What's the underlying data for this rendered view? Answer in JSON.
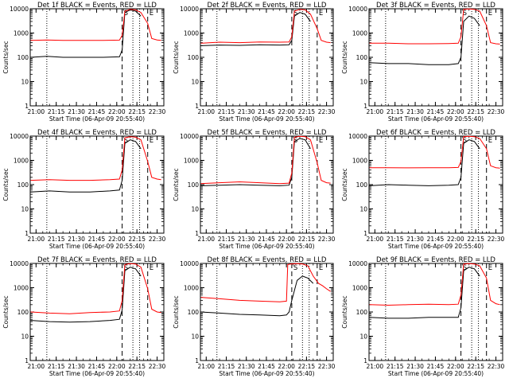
{
  "colors": {
    "background": "#ffffff",
    "axes": "#000000",
    "events": "#000000",
    "lld": "#ff0000"
  },
  "shared": {
    "xlabel": "Start Time (06-Apr-09 20:55:40)",
    "ylabel": "Counts/sec",
    "x_ticks": [
      "21:00",
      "21:15",
      "21:30",
      "21:45",
      "22:00",
      "22:15",
      "22:30"
    ],
    "y_ticks": [
      "1",
      "10",
      "100",
      "1000",
      "10000"
    ]
  },
  "chart_data": [
    {
      "type": "line",
      "title": "Det 1f BLACK = Events, RED = LLD",
      "xlim": [
        "20:55:40",
        "22:35"
      ],
      "ylim": [
        1,
        10000
      ],
      "yscale": "log",
      "markers": [
        {
          "time": "21:08",
          "style": "dotted",
          "label": ""
        },
        {
          "time": "22:04",
          "style": "dashed",
          "label": "S"
        },
        {
          "time": "22:12",
          "style": "dotted",
          "label": ""
        },
        {
          "time": "22:17",
          "style": "dotted",
          "label": ""
        },
        {
          "time": "22:23",
          "style": "dashed",
          "label": "E"
        }
      ],
      "series": [
        {
          "name": "BLACK = Events",
          "color": "#000000",
          "x": [
            "20:56",
            "21:08",
            "21:20",
            "21:35",
            "21:50",
            "22:02",
            "22:04",
            "22:06",
            "22:10",
            "22:14",
            "22:18",
            "22:22"
          ],
          "y": [
            100,
            110,
            100,
            100,
            100,
            105,
            200,
            7000,
            9000,
            8000,
            5000,
            null
          ]
        },
        {
          "name": "RED = LLD",
          "color": "#ff0000",
          "x": [
            "20:56",
            "21:08",
            "21:20",
            "21:35",
            "21:50",
            "22:02",
            "22:04",
            "22:06",
            "22:10",
            "22:14",
            "22:18",
            "22:23",
            "22:26",
            "22:30",
            "22:33"
          ],
          "y": [
            500,
            520,
            500,
            500,
            500,
            510,
            800,
            8000,
            9500,
            9000,
            7000,
            2500,
            600,
            520,
            500
          ]
        }
      ]
    },
    {
      "type": "line",
      "title": "Det 2f BLACK = Events, RED = LLD",
      "xlim": [
        "20:55:40",
        "22:35"
      ],
      "ylim": [
        1,
        10000
      ],
      "yscale": "log",
      "markers": [
        {
          "time": "21:08",
          "style": "dotted",
          "label": ""
        },
        {
          "time": "22:04",
          "style": "dashed",
          "label": "S"
        },
        {
          "time": "22:12",
          "style": "dotted",
          "label": ""
        },
        {
          "time": "22:17",
          "style": "dotted",
          "label": ""
        },
        {
          "time": "22:23",
          "style": "dashed",
          "label": "E"
        }
      ],
      "series": [
        {
          "name": "BLACK = Events",
          "color": "#000000",
          "x": [
            "20:56",
            "21:10",
            "21:25",
            "21:40",
            "21:55",
            "22:02",
            "22:04",
            "22:06",
            "22:10",
            "22:14",
            "22:18",
            "22:22"
          ],
          "y": [
            300,
            320,
            310,
            330,
            320,
            330,
            500,
            5000,
            7000,
            6000,
            3000,
            null
          ]
        },
        {
          "name": "RED = LLD",
          "color": "#ff0000",
          "x": [
            "20:56",
            "21:10",
            "21:25",
            "21:40",
            "21:55",
            "22:02",
            "22:04",
            "22:06",
            "22:10",
            "22:14",
            "22:18",
            "22:23",
            "22:26",
            "22:30",
            "22:33"
          ],
          "y": [
            380,
            420,
            400,
            430,
            420,
            430,
            700,
            8000,
            9500,
            9000,
            6000,
            1500,
            500,
            420,
            400
          ]
        }
      ]
    },
    {
      "type": "line",
      "title": "Det 3f BLACK = Events, RED = LLD",
      "xlim": [
        "20:55:40",
        "22:35"
      ],
      "ylim": [
        1,
        10000
      ],
      "yscale": "log",
      "markers": [
        {
          "time": "21:08",
          "style": "dotted",
          "label": ""
        },
        {
          "time": "22:04",
          "style": "dashed",
          "label": "S"
        },
        {
          "time": "22:12",
          "style": "dotted",
          "label": ""
        },
        {
          "time": "22:17",
          "style": "dotted",
          "label": ""
        },
        {
          "time": "22:23",
          "style": "dashed",
          "label": "E"
        }
      ],
      "series": [
        {
          "name": "BLACK = Events",
          "color": "#000000",
          "x": [
            "20:56",
            "21:10",
            "21:25",
            "21:40",
            "21:55",
            "22:02",
            "22:04",
            "22:06",
            "22:10",
            "22:14",
            "22:18",
            "22:22"
          ],
          "y": [
            60,
            55,
            55,
            50,
            50,
            55,
            100,
            3000,
            5000,
            4000,
            2000,
            null
          ]
        },
        {
          "name": "RED = LLD",
          "color": "#ff0000",
          "x": [
            "20:56",
            "21:10",
            "21:25",
            "21:40",
            "21:55",
            "22:02",
            "22:04",
            "22:06",
            "22:10",
            "22:14",
            "22:18",
            "22:23",
            "22:26",
            "22:30",
            "22:33"
          ],
          "y": [
            380,
            380,
            360,
            360,
            370,
            380,
            700,
            9500,
            9800,
            9500,
            8000,
            2000,
            400,
            360,
            350
          ]
        }
      ]
    },
    {
      "type": "line",
      "title": "Det 4f BLACK = Events, RED = LLD",
      "xlim": [
        "20:55:40",
        "22:35"
      ],
      "ylim": [
        1,
        10000
      ],
      "yscale": "log",
      "markers": [
        {
          "time": "21:08",
          "style": "dotted",
          "label": ""
        },
        {
          "time": "22:04",
          "style": "dashed",
          "label": "S"
        },
        {
          "time": "22:12",
          "style": "dotted",
          "label": ""
        },
        {
          "time": "22:17",
          "style": "dotted",
          "label": ""
        },
        {
          "time": "22:23",
          "style": "dashed",
          "label": "E"
        }
      ],
      "series": [
        {
          "name": "BLACK = Events",
          "color": "#000000",
          "x": [
            "20:56",
            "21:10",
            "21:25",
            "21:40",
            "21:55",
            "22:02",
            "22:04",
            "22:06",
            "22:10",
            "22:14",
            "22:18",
            "22:22"
          ],
          "y": [
            50,
            55,
            50,
            50,
            55,
            60,
            150,
            5000,
            7000,
            6000,
            3000,
            null
          ]
        },
        {
          "name": "RED = LLD",
          "color": "#ff0000",
          "x": [
            "20:56",
            "21:10",
            "21:25",
            "21:40",
            "21:55",
            "22:02",
            "22:04",
            "22:06",
            "22:10",
            "22:14",
            "22:18",
            "22:23",
            "22:26",
            "22:30",
            "22:33"
          ],
          "y": [
            150,
            160,
            150,
            150,
            160,
            170,
            400,
            8500,
            9500,
            9000,
            7000,
            900,
            200,
            170,
            160
          ]
        }
      ]
    },
    {
      "type": "line",
      "title": "Det 5f BLACK = Events, RED = LLD",
      "xlim": [
        "20:55:40",
        "22:35"
      ],
      "ylim": [
        1,
        10000
      ],
      "yscale": "log",
      "markers": [
        {
          "time": "21:08",
          "style": "dotted",
          "label": ""
        },
        {
          "time": "22:04",
          "style": "dashed",
          "label": "S"
        },
        {
          "time": "22:12",
          "style": "dotted",
          "label": ""
        },
        {
          "time": "22:17",
          "style": "dotted",
          "label": ""
        },
        {
          "time": "22:23",
          "style": "dashed",
          "label": "E"
        }
      ],
      "series": [
        {
          "name": "BLACK = Events",
          "color": "#000000",
          "x": [
            "20:56",
            "21:10",
            "21:25",
            "21:40",
            "21:55",
            "22:02",
            "22:04",
            "22:06",
            "22:10",
            "22:14",
            "22:18",
            "22:22"
          ],
          "y": [
            90,
            95,
            100,
            95,
            90,
            95,
            200,
            6000,
            8000,
            7000,
            3000,
            null
          ]
        },
        {
          "name": "RED = LLD",
          "color": "#ff0000",
          "x": [
            "20:56",
            "21:10",
            "21:25",
            "21:40",
            "21:55",
            "22:02",
            "22:04",
            "22:06",
            "22:10",
            "22:14",
            "22:18",
            "22:23",
            "22:26",
            "22:30",
            "22:33"
          ],
          "y": [
            110,
            120,
            130,
            120,
            110,
            115,
            300,
            9000,
            9800,
            9500,
            7000,
            800,
            150,
            120,
            115
          ]
        }
      ]
    },
    {
      "type": "line",
      "title": "Det 6f BLACK = Events, RED = LLD",
      "xlim": [
        "20:55:40",
        "22:35"
      ],
      "ylim": [
        1,
        10000
      ],
      "yscale": "log",
      "markers": [
        {
          "time": "21:08",
          "style": "dotted",
          "label": ""
        },
        {
          "time": "22:04",
          "style": "dashed",
          "label": "S"
        },
        {
          "time": "22:12",
          "style": "dotted",
          "label": ""
        },
        {
          "time": "22:17",
          "style": "dotted",
          "label": ""
        },
        {
          "time": "22:23",
          "style": "dashed",
          "label": "E"
        }
      ],
      "series": [
        {
          "name": "BLACK = Events",
          "color": "#000000",
          "x": [
            "20:56",
            "21:10",
            "21:25",
            "21:40",
            "21:55",
            "22:02",
            "22:04",
            "22:06",
            "22:10",
            "22:14",
            "22:18",
            "22:22"
          ],
          "y": [
            90,
            100,
            95,
            90,
            95,
            100,
            200,
            5000,
            7000,
            6000,
            3000,
            null
          ]
        },
        {
          "name": "RED = LLD",
          "color": "#ff0000",
          "x": [
            "20:56",
            "21:10",
            "21:25",
            "21:40",
            "21:55",
            "22:02",
            "22:04",
            "22:06",
            "22:10",
            "22:14",
            "22:18",
            "22:23",
            "22:26",
            "22:30",
            "22:33"
          ],
          "y": [
            500,
            500,
            490,
            500,
            500,
            510,
            900,
            9500,
            9800,
            9500,
            8000,
            3000,
            600,
            500,
            480
          ]
        }
      ]
    },
    {
      "type": "line",
      "title": "Det 7f BLACK = Events, RED = LLD",
      "xlim": [
        "20:55:40",
        "22:35"
      ],
      "ylim": [
        1,
        10000
      ],
      "yscale": "log",
      "markers": [
        {
          "time": "21:08",
          "style": "dotted",
          "label": ""
        },
        {
          "time": "22:04",
          "style": "dashed",
          "label": "S"
        },
        {
          "time": "22:12",
          "style": "dotted",
          "label": ""
        },
        {
          "time": "22:17",
          "style": "dotted",
          "label": ""
        },
        {
          "time": "22:23",
          "style": "dashed",
          "label": "E"
        }
      ],
      "series": [
        {
          "name": "BLACK = Events",
          "color": "#000000",
          "x": [
            "20:56",
            "21:10",
            "21:25",
            "21:40",
            "21:55",
            "22:02",
            "22:04",
            "22:06",
            "22:10",
            "22:14",
            "22:18",
            "22:22"
          ],
          "y": [
            45,
            40,
            38,
            40,
            45,
            50,
            120,
            5000,
            7000,
            6000,
            3000,
            null
          ]
        },
        {
          "name": "RED = LLD",
          "color": "#ff0000",
          "x": [
            "20:56",
            "21:10",
            "21:25",
            "21:40",
            "21:55",
            "22:02",
            "22:04",
            "22:06",
            "22:10",
            "22:14",
            "22:18",
            "22:23",
            "22:26",
            "22:30",
            "22:33"
          ],
          "y": [
            100,
            90,
            85,
            95,
            100,
            110,
            300,
            9000,
            9800,
            9500,
            7000,
            900,
            130,
            100,
            95
          ]
        }
      ]
    },
    {
      "type": "line",
      "title": "Det 8f BLACK = Events, RED = LLD",
      "xlim": [
        "20:55:40",
        "22:35"
      ],
      "ylim": [
        1,
        10000
      ],
      "yscale": "log",
      "markers": [
        {
          "time": "21:08",
          "style": "dotted",
          "label": ""
        },
        {
          "time": "22:04",
          "style": "dashed",
          "label": "S"
        },
        {
          "time": "22:12",
          "style": "dotted",
          "label": ""
        },
        {
          "time": "22:17",
          "style": "dotted",
          "label": ""
        },
        {
          "time": "22:23",
          "style": "dashed",
          "label": "E"
        }
      ],
      "series": [
        {
          "name": "BLACK = Events",
          "color": "#000000",
          "x": [
            "20:56",
            "21:10",
            "21:25",
            "21:40",
            "21:55",
            "22:00",
            "22:02",
            "22:04",
            "22:08",
            "22:12",
            "22:16",
            "22:20",
            "22:22"
          ],
          "y": [
            100,
            90,
            80,
            75,
            70,
            75,
            100,
            300,
            2000,
            3000,
            2500,
            1500,
            null
          ]
        },
        {
          "name": "RED = LLD",
          "color": "#ff0000",
          "x": [
            "20:56",
            "21:10",
            "21:25",
            "21:40",
            "21:55",
            "22:00",
            "22:01",
            "22:03",
            "22:08",
            "22:12",
            "22:16",
            "22:20",
            "22:24",
            "22:27",
            "22:30",
            "22:33"
          ],
          "y": [
            400,
            350,
            300,
            280,
            260,
            280,
            9000,
            9500,
            9800,
            9500,
            8000,
            3000,
            1500,
            1200,
            900,
            700
          ]
        }
      ]
    },
    {
      "type": "line",
      "title": "Det 9f BLACK = Events, RED = LLD",
      "xlim": [
        "20:55:40",
        "22:35"
      ],
      "ylim": [
        1,
        10000
      ],
      "yscale": "log",
      "markers": [
        {
          "time": "21:08",
          "style": "dotted",
          "label": ""
        },
        {
          "time": "22:04",
          "style": "dashed",
          "label": "S"
        },
        {
          "time": "22:12",
          "style": "dotted",
          "label": ""
        },
        {
          "time": "22:17",
          "style": "dotted",
          "label": ""
        },
        {
          "time": "22:23",
          "style": "dashed",
          "label": "E"
        }
      ],
      "series": [
        {
          "name": "BLACK = Events",
          "color": "#000000",
          "x": [
            "20:56",
            "21:10",
            "21:25",
            "21:40",
            "21:55",
            "22:02",
            "22:04",
            "22:06",
            "22:10",
            "22:14",
            "22:18",
            "22:22"
          ],
          "y": [
            60,
            55,
            55,
            60,
            60,
            60,
            150,
            5000,
            7000,
            6000,
            3000,
            null
          ]
        },
        {
          "name": "RED = LLD",
          "color": "#ff0000",
          "x": [
            "20:56",
            "21:10",
            "21:25",
            "21:40",
            "21:55",
            "22:02",
            "22:04",
            "22:06",
            "22:10",
            "22:14",
            "22:18",
            "22:23",
            "22:26",
            "22:30",
            "22:33"
          ],
          "y": [
            200,
            190,
            200,
            210,
            200,
            210,
            500,
            9500,
            9800,
            9500,
            8000,
            2500,
            300,
            220,
            200
          ]
        }
      ]
    }
  ]
}
